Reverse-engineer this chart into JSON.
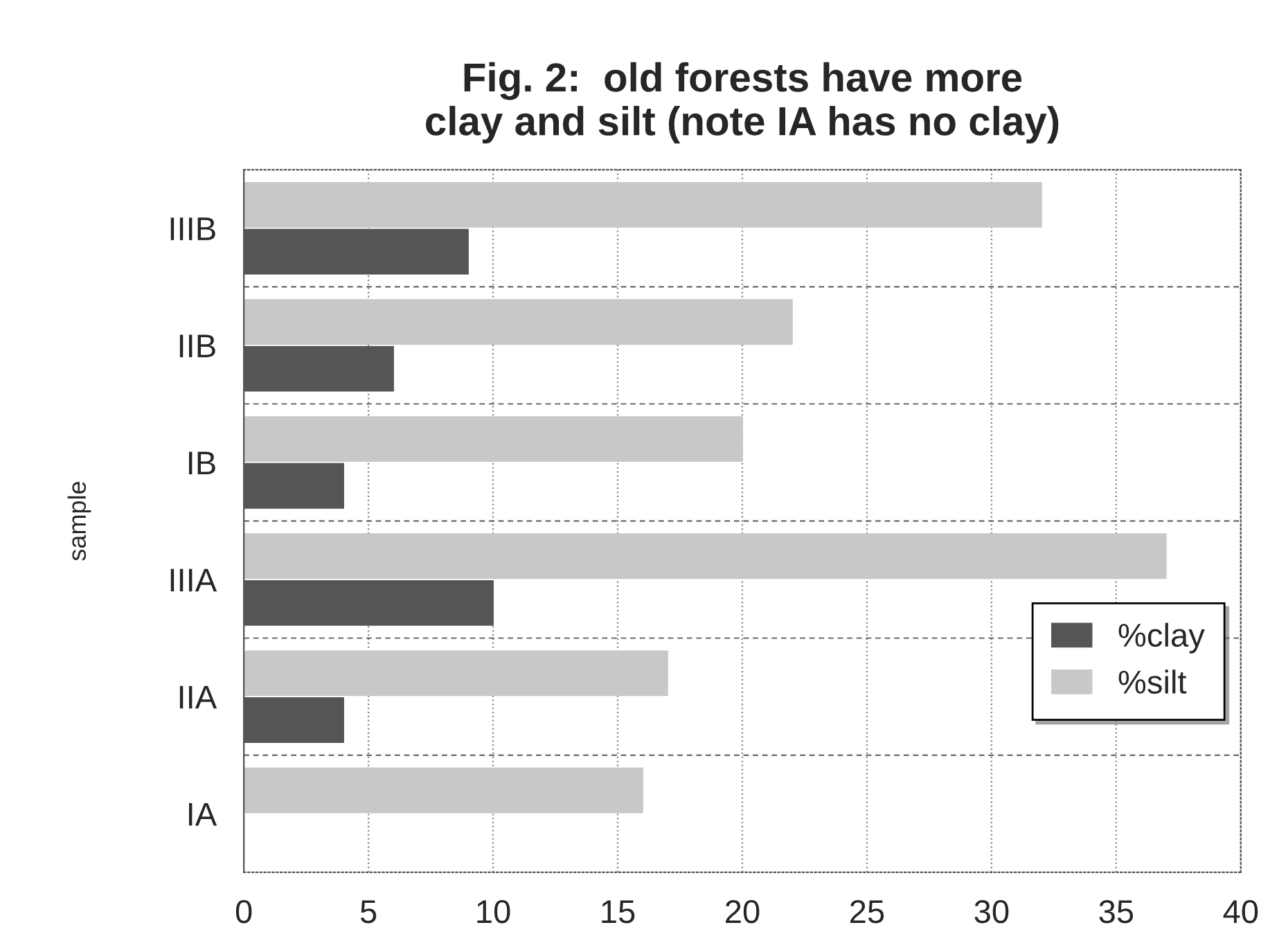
{
  "chart_data": {
    "type": "bar",
    "orientation": "horizontal",
    "title": "Fig. 2:  old forests have more\nclay and silt (note IA has no clay)",
    "ylabel": "sample",
    "categories": [
      "IIIB",
      "IIB",
      "IB",
      "IIIA",
      "IIA",
      "IA"
    ],
    "series": [
      {
        "name": "%silt",
        "color": "#c8c8c8",
        "values": [
          32,
          22,
          20,
          37,
          17,
          16
        ]
      },
      {
        "name": "%clay",
        "color": "#555555",
        "values": [
          9,
          6,
          4,
          10,
          4,
          0
        ]
      }
    ],
    "xlim": [
      0,
      40
    ],
    "xticks": [
      0,
      5,
      10,
      15,
      20,
      25,
      30,
      35,
      40
    ],
    "grid": "x",
    "legend": "right"
  }
}
